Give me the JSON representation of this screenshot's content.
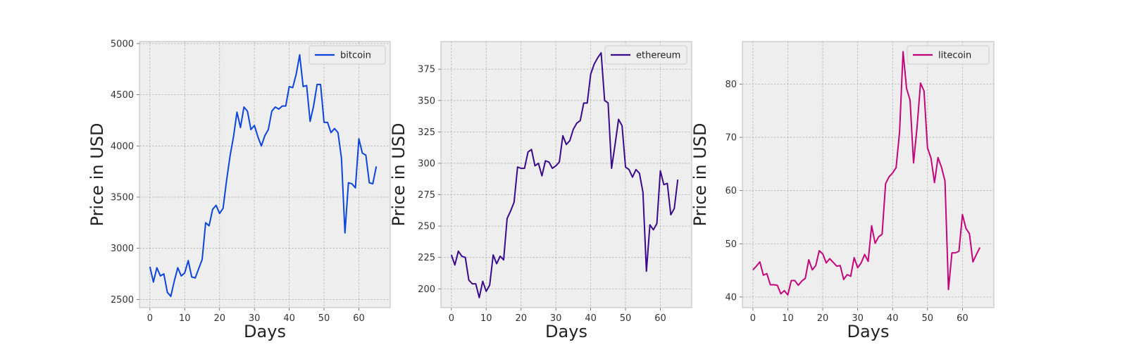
{
  "chart_data": [
    {
      "type": "line",
      "xlabel": "Days",
      "ylabel": "Price in USD",
      "xlim": [
        -3,
        69
      ],
      "ylim": [
        2420,
        5020
      ],
      "xticks": [
        0,
        10,
        20,
        30,
        40,
        50,
        60
      ],
      "yticks": [
        2500,
        3000,
        3500,
        4000,
        4500,
        5000
      ],
      "grid": true,
      "legend_position": "top-right",
      "series": [
        {
          "name": "bitcoin",
          "color": "#0b45dc",
          "x": [
            0,
            1,
            2,
            3,
            4,
            5,
            6,
            7,
            8,
            9,
            10,
            11,
            12,
            13,
            14,
            15,
            16,
            17,
            18,
            19,
            20,
            21,
            22,
            23,
            24,
            25,
            26,
            27,
            28,
            29,
            30,
            31,
            32,
            33,
            34,
            35,
            36,
            37,
            38,
            39,
            40,
            41,
            42,
            43,
            44,
            45,
            46,
            47,
            48,
            49,
            50,
            51,
            52,
            53,
            54,
            55,
            56,
            57,
            58,
            59,
            60,
            61,
            62,
            63,
            64,
            65
          ],
          "values": [
            2820,
            2670,
            2810,
            2730,
            2750,
            2570,
            2530,
            2680,
            2810,
            2730,
            2760,
            2880,
            2720,
            2710,
            2800,
            2890,
            3250,
            3220,
            3380,
            3420,
            3340,
            3390,
            3660,
            3900,
            4090,
            4330,
            4180,
            4380,
            4340,
            4160,
            4200,
            4090,
            4000,
            4100,
            4160,
            4340,
            4380,
            4360,
            4390,
            4390,
            4580,
            4570,
            4700,
            4890,
            4580,
            4590,
            4240,
            4390,
            4600,
            4600,
            4230,
            4230,
            4130,
            4170,
            4130,
            3880,
            3150,
            3640,
            3630,
            3590,
            4070,
            3930,
            3910,
            3640,
            3630,
            3800
          ]
        }
      ]
    },
    {
      "type": "line",
      "xlabel": "Days",
      "ylabel": "Price in USD",
      "xlim": [
        -3,
        69
      ],
      "ylim": [
        185,
        397
      ],
      "xticks": [
        0,
        10,
        20,
        30,
        40,
        50,
        60
      ],
      "yticks": [
        200,
        225,
        250,
        275,
        300,
        325,
        350,
        375
      ],
      "grid": true,
      "legend_position": "top-right",
      "series": [
        {
          "name": "ethereum",
          "color": "#3a0a8c",
          "x": [
            0,
            1,
            2,
            3,
            4,
            5,
            6,
            7,
            8,
            9,
            10,
            11,
            12,
            13,
            14,
            15,
            16,
            17,
            18,
            19,
            20,
            21,
            22,
            23,
            24,
            25,
            26,
            27,
            28,
            29,
            30,
            31,
            32,
            33,
            34,
            35,
            36,
            37,
            38,
            39,
            40,
            41,
            42,
            43,
            44,
            45,
            46,
            47,
            48,
            49,
            50,
            51,
            52,
            53,
            54,
            55,
            56,
            57,
            58,
            59,
            60,
            61,
            62,
            63,
            64,
            65
          ],
          "values": [
            227,
            219,
            230,
            226,
            225,
            207,
            204,
            204,
            193,
            206,
            198,
            203,
            227,
            220,
            226,
            223,
            256,
            262,
            269,
            297,
            296,
            296,
            309,
            311,
            298,
            300,
            290,
            302,
            301,
            296,
            298,
            301,
            322,
            315,
            318,
            327,
            332,
            334,
            348,
            348,
            371,
            379,
            384,
            388,
            350,
            348,
            296,
            315,
            335,
            330,
            297,
            295,
            289,
            295,
            292,
            277,
            214,
            251,
            247,
            252,
            294,
            283,
            284,
            259,
            264,
            287
          ]
        }
      ]
    },
    {
      "type": "line",
      "xlabel": "Days",
      "ylabel": "Price in USD",
      "xlim": [
        -3,
        69
      ],
      "ylim": [
        38,
        88
      ],
      "xticks": [
        0,
        10,
        20,
        30,
        40,
        50,
        60
      ],
      "yticks": [
        40,
        50,
        60,
        70,
        80
      ],
      "grid": true,
      "legend_position": "top-right",
      "series": [
        {
          "name": "litecoin",
          "color": "#c4047c",
          "x": [
            0,
            1,
            2,
            3,
            4,
            5,
            6,
            7,
            8,
            9,
            10,
            11,
            12,
            13,
            14,
            15,
            16,
            17,
            18,
            19,
            20,
            21,
            22,
            23,
            24,
            25,
            26,
            27,
            28,
            29,
            30,
            31,
            32,
            33,
            34,
            35,
            36,
            37,
            38,
            39,
            40,
            41,
            42,
            43,
            44,
            45,
            46,
            47,
            48,
            49,
            50,
            51,
            52,
            53,
            54,
            55,
            56,
            57,
            58,
            59,
            60,
            61,
            62,
            63,
            64,
            65
          ],
          "values": [
            45.1,
            45.8,
            46.6,
            44.1,
            44.4,
            42.3,
            42.3,
            42.2,
            40.6,
            41.2,
            40.4,
            43.1,
            43.1,
            42.2,
            43.0,
            43.5,
            47.0,
            45.1,
            45.9,
            48.7,
            48.1,
            46.4,
            47.2,
            46.5,
            45.8,
            45.9,
            43.3,
            44.2,
            43.9,
            47.4,
            45.5,
            46.4,
            48.0,
            46.7,
            53.4,
            50.1,
            51.3,
            51.8,
            61.3,
            62.6,
            63.3,
            64.3,
            71.0,
            86.1,
            79.2,
            77.0,
            65.2,
            71.9,
            80.2,
            78.7,
            68.0,
            66.1,
            61.5,
            66.2,
            64.4,
            61.8,
            41.4,
            48.3,
            48.3,
            48.6,
            55.5,
            52.9,
            51.9,
            46.6,
            48.0,
            49.3
          ]
        }
      ]
    }
  ]
}
